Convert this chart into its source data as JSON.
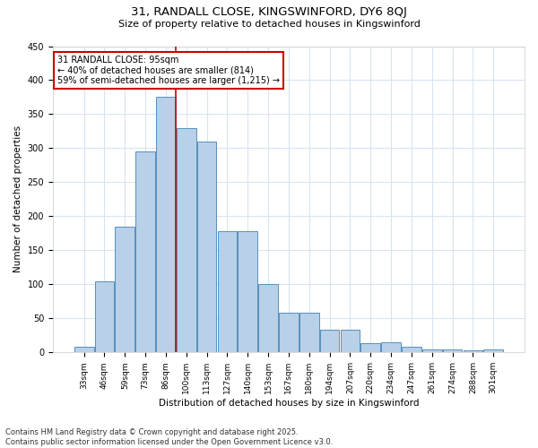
{
  "title1": "31, RANDALL CLOSE, KINGSWINFORD, DY6 8QJ",
  "title2": "Size of property relative to detached houses in Kingswinford",
  "xlabel": "Distribution of detached houses by size in Kingswinford",
  "ylabel": "Number of detached properties",
  "categories": [
    "33sqm",
    "46sqm",
    "59sqm",
    "73sqm",
    "86sqm",
    "100sqm",
    "113sqm",
    "127sqm",
    "140sqm",
    "153sqm",
    "167sqm",
    "180sqm",
    "194sqm",
    "207sqm",
    "220sqm",
    "234sqm",
    "247sqm",
    "261sqm",
    "274sqm",
    "288sqm",
    "301sqm"
  ],
  "values": [
    8,
    105,
    185,
    295,
    375,
    330,
    310,
    178,
    178,
    100,
    58,
    58,
    33,
    33,
    13,
    15,
    8,
    5,
    5,
    3,
    5
  ],
  "bar_color": "#b8d0e8",
  "bar_edge_color": "#5590c0",
  "vline_x_index": 5,
  "vline_color": "#cc0000",
  "annotation_text": "31 RANDALL CLOSE: 95sqm\n← 40% of detached houses are smaller (814)\n59% of semi-detached houses are larger (1,215) →",
  "annotation_box_color": "#ffffff",
  "annotation_box_edge": "#cc0000",
  "ylim": [
    0,
    450
  ],
  "yticks": [
    0,
    50,
    100,
    150,
    200,
    250,
    300,
    350,
    400,
    450
  ],
  "footer1": "Contains HM Land Registry data © Crown copyright and database right 2025.",
  "footer2": "Contains public sector information licensed under the Open Government Licence v3.0.",
  "bg_color": "#ffffff",
  "plot_bg_color": "#ffffff",
  "grid_color": "#d8e4f0"
}
